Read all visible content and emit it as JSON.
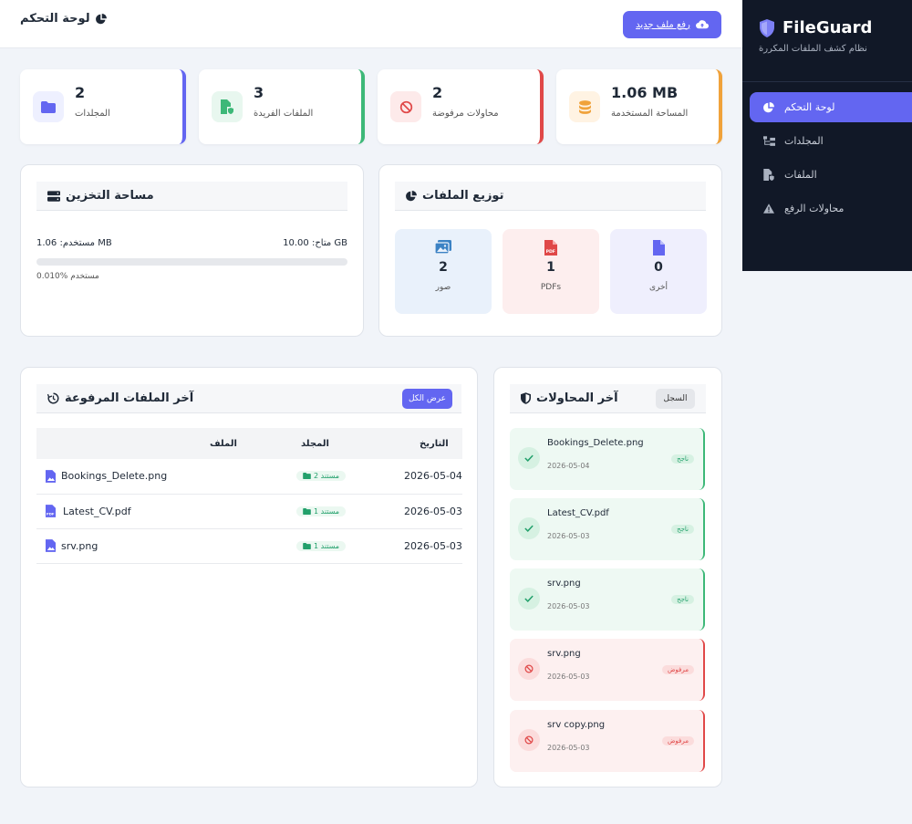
{
  "sidebar": {
    "brand_name": "FileGuard",
    "brand_sub": "نظام كشف الملفات المكررة",
    "items": [
      {
        "label": "لوحة التحكم",
        "icon": "chart-pie-icon",
        "active": true
      },
      {
        "label": "المجلدات",
        "icon": "folder-tree-icon",
        "active": false
      },
      {
        "label": "الملفات",
        "icon": "file-shield-icon",
        "active": false
      },
      {
        "label": "محاولات الرفع",
        "icon": "warning-icon",
        "active": false
      }
    ]
  },
  "header": {
    "title": "لوحة التحكم",
    "upload_label": "رفع ملف جديد"
  },
  "stats": [
    {
      "value": "2",
      "label": "المجلدات"
    },
    {
      "value": "3",
      "label": "الملفات الفريدة"
    },
    {
      "value": "2",
      "label": "محاولات مرفوضة"
    },
    {
      "value": "1.06 MB",
      "label": "المساحة المستخدمة"
    }
  ],
  "storage": {
    "title": "مساحة التخزين",
    "used_text": "مستخدم: 1.06 MB",
    "available_text": "متاح: 10.00 GB",
    "used_percent_text": "0.010% مستخدم",
    "used_fraction": 0.0001
  },
  "distribution": {
    "title": "توزيع الملفات",
    "items": [
      {
        "value": "2",
        "label": "صور"
      },
      {
        "value": "1",
        "label": "PDFs"
      },
      {
        "value": "0",
        "label": "أخرى"
      }
    ]
  },
  "recent_files": {
    "title": "آخر الملفات المرفوعة",
    "view_all": "عرض الكل",
    "columns": {
      "file": "الملف",
      "folder": "المجلد",
      "date": "التاريخ"
    },
    "rows": [
      {
        "name": "Bookings_Delete.png",
        "folder": "مستند 2",
        "date": "2026-05-04",
        "kind": "image"
      },
      {
        "name": "Latest_CV.pdf",
        "folder": "مستند 1",
        "date": "2026-05-03",
        "kind": "pdf"
      },
      {
        "name": "srv.png",
        "folder": "مستند 1",
        "date": "2026-05-03",
        "kind": "image"
      }
    ]
  },
  "recent_attempts": {
    "title": "آخر المحاولات",
    "log_label": "السجل",
    "items": [
      {
        "name": "Bookings_Delete.png",
        "date": "2026-05-04",
        "status": "ناجح",
        "ok": true
      },
      {
        "name": "Latest_CV.pdf",
        "date": "2026-05-03",
        "status": "ناجح",
        "ok": true
      },
      {
        "name": "srv.png",
        "date": "2026-05-03",
        "status": "ناجح",
        "ok": true
      },
      {
        "name": "srv.png",
        "date": "2026-05-03",
        "status": "مرفوض",
        "ok": false
      },
      {
        "name": "srv copy.png",
        "date": "2026-05-03",
        "status": "مرفوض",
        "ok": false
      }
    ]
  },
  "colors": {
    "accent": "#6366f1",
    "success": "#22a06b",
    "danger": "#e04848",
    "warning": "#f0a23b",
    "sidebar_bg": "#111827"
  }
}
